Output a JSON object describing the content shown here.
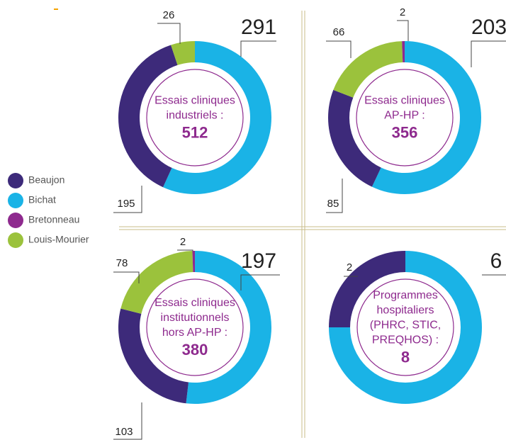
{
  "legend": {
    "names": [
      "Beaujon",
      "Bichat",
      "Bretonneau",
      "Louis-Mourier"
    ],
    "colors": [
      "#3d2a7a",
      "#1ab3e6",
      "#8e2a8e",
      "#9bc23c"
    ]
  },
  "chart_data": [
    {
      "type": "pie",
      "title_lines": [
        "Essais cliniques",
        "industriels :"
      ],
      "total": 512,
      "values": [
        195,
        291,
        null,
        26
      ]
    },
    {
      "type": "pie",
      "title_lines": [
        "Essais cliniques",
        "AP-HP :"
      ],
      "total": 356,
      "values": [
        85,
        203,
        2,
        66
      ]
    },
    {
      "type": "pie",
      "title_lines": [
        "Essais cliniques",
        "institutionnels",
        "hors AP-HP :"
      ],
      "total": 380,
      "values": [
        103,
        197,
        2,
        78
      ]
    },
    {
      "type": "pie",
      "title_lines": [
        "Programmes",
        "hospitaliers",
        "(PHRC, STIC,",
        "PREQHOS) :"
      ],
      "total": 8,
      "values": [
        2,
        6,
        null,
        null
      ]
    }
  ]
}
